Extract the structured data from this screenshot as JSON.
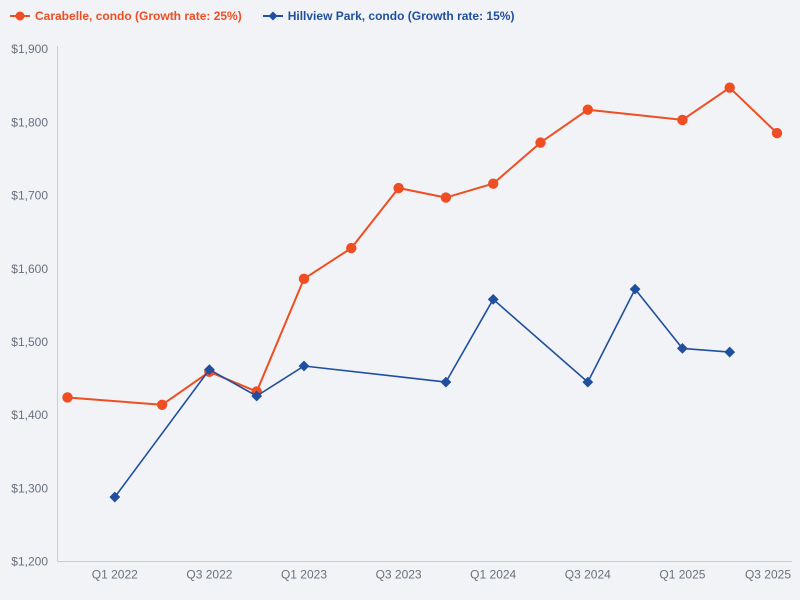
{
  "page": {
    "background": "#f1f3f6"
  },
  "chart_data": {
    "type": "line",
    "title": "",
    "xlabel": "",
    "ylabel": "",
    "legend_position": "top-left",
    "grid": false,
    "x": [
      "Q4 2021",
      "Q1 2022",
      "Q2 2022",
      "Q3 2022",
      "Q4 2022",
      "Q1 2023",
      "Q2 2023",
      "Q3 2023",
      "Q4 2023",
      "Q1 2024",
      "Q2 2024",
      "Q3 2024",
      "Q4 2024",
      "Q1 2025",
      "Q2 2025",
      "Q3 2025"
    ],
    "x_tick_indices": [
      1,
      3,
      5,
      7,
      9,
      11,
      13,
      15
    ],
    "x_tick_labels": [
      "Q1 2022",
      "Q3 2022",
      "Q1 2023",
      "Q3 2023",
      "Q1 2024",
      "Q3 2024",
      "Q1 2025",
      "Q3 2025"
    ],
    "ylim": [
      1200,
      1900
    ],
    "y_ticks": [
      1200,
      1300,
      1400,
      1500,
      1600,
      1700,
      1800,
      1900
    ],
    "y_tick_prefix": "$",
    "axis_color": "#c3cedd",
    "tick_text_color": "#68717e",
    "series": [
      {
        "name": "Carabelle, condo (Growth rate: 25%)",
        "color": "#ef4e23",
        "marker": "circle",
        "values": [
          1424,
          null,
          1414,
          1459,
          1432,
          1586,
          1628,
          1710,
          1697,
          1716,
          1772,
          1817,
          null,
          1803,
          1847,
          1785
        ]
      },
      {
        "name": "Hillview Park, condo (Growth rate: 15%)",
        "color": "#1f4f9e",
        "marker": "diamond",
        "values": [
          null,
          1288,
          null,
          1462,
          1426,
          1467,
          null,
          null,
          1445,
          1558,
          null,
          1445,
          1572,
          1491,
          1486,
          null
        ]
      }
    ]
  }
}
